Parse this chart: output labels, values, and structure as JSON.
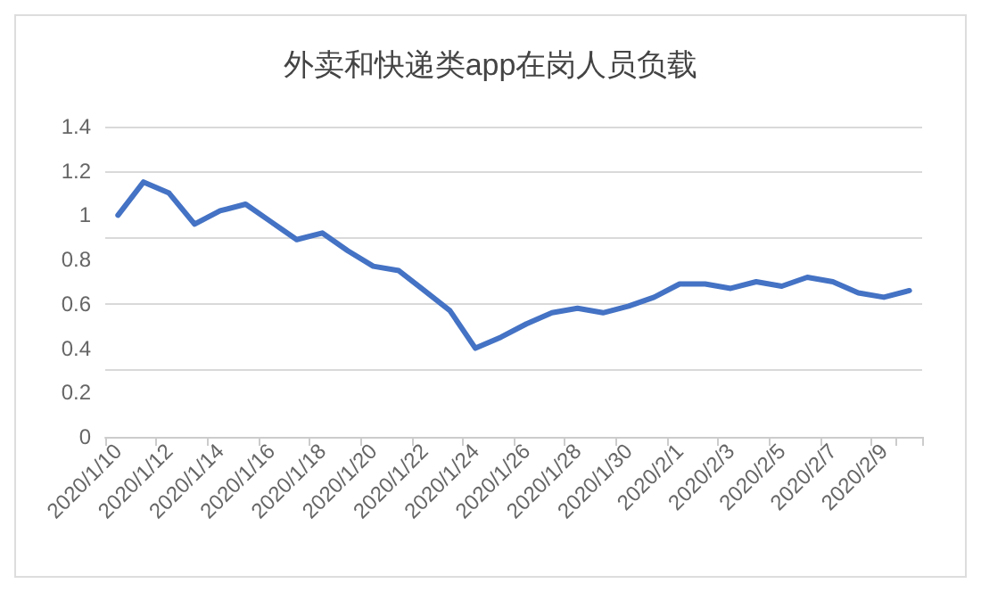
{
  "chart_data": {
    "type": "line",
    "title": "外卖和快递类app在岗人员负载",
    "categories": [
      "2020/1/10",
      null,
      "2020/1/12",
      null,
      "2020/1/14",
      null,
      "2020/1/16",
      null,
      "2020/1/18",
      null,
      "2020/1/20",
      null,
      "2020/1/22",
      null,
      "2020/1/24",
      null,
      "2020/1/26",
      null,
      "2020/1/28",
      null,
      "2020/1/30",
      null,
      "2020/2/1",
      null,
      "2020/2/3",
      null,
      "2020/2/5",
      null,
      "2020/2/7",
      null,
      "2020/2/9",
      null
    ],
    "values": [
      1.0,
      1.15,
      1.1,
      0.96,
      1.02,
      1.05,
      0.97,
      0.89,
      0.92,
      0.84,
      0.77,
      0.75,
      0.66,
      0.57,
      0.4,
      0.45,
      0.51,
      0.56,
      0.58,
      0.56,
      0.59,
      0.63,
      0.69,
      0.69,
      0.67,
      0.7,
      0.68,
      0.72,
      0.7,
      0.65,
      0.63,
      0.66
    ],
    "color": "#4472c4",
    "ylim": [
      0,
      1.4
    ],
    "yticks": [
      0,
      0.2,
      0.4,
      0.6,
      0.8,
      1,
      1.2,
      1.4
    ],
    "grid": "y",
    "marker": "none",
    "line_style": "solid"
  }
}
